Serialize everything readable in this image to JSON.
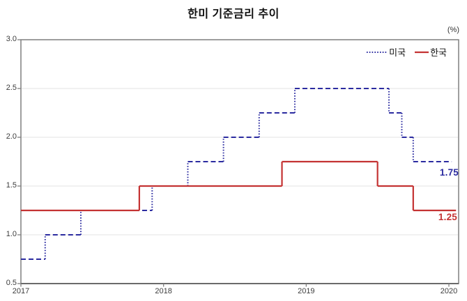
{
  "chart_data": {
    "type": "line",
    "subtype": "step",
    "title": "한미 기준금리 추이",
    "unit": "(%)",
    "x_tick_labels": [
      "2017",
      "2018",
      "2019",
      "2020"
    ],
    "y_tick_labels": [
      "3.0",
      "2.5",
      "2.0",
      "1.5",
      "1.0",
      "0.5"
    ],
    "ylim": [
      0.5,
      3.0
    ],
    "xlim": [
      2017.0,
      2020.07
    ],
    "grid": "horizontal",
    "legend_position": "top-right-inside",
    "axis_color": "#7f7f7f",
    "grid_color": "#e3e3e3",
    "series": [
      {
        "name": "미국",
        "color": "#2b2ba0",
        "line_style": "dashed",
        "end_label": "1.75",
        "steps": [
          [
            2017.0,
            0.75
          ],
          [
            2017.17,
            1.0
          ],
          [
            2017.42,
            1.25
          ],
          [
            2017.92,
            1.5
          ],
          [
            2018.17,
            1.75
          ],
          [
            2018.42,
            2.0
          ],
          [
            2018.67,
            2.25
          ],
          [
            2018.92,
            2.5
          ],
          [
            2019.58,
            2.25
          ],
          [
            2019.67,
            2.0
          ],
          [
            2019.75,
            1.75
          ],
          [
            2020.02,
            1.75
          ]
        ]
      },
      {
        "name": "한국",
        "color": "#c43333",
        "line_style": "solid",
        "end_label": "1.25",
        "steps": [
          [
            2017.0,
            1.25
          ],
          [
            2017.83,
            1.5
          ],
          [
            2018.83,
            1.75
          ],
          [
            2019.5,
            1.5
          ],
          [
            2019.75,
            1.25
          ],
          [
            2020.05,
            1.25
          ]
        ]
      }
    ]
  }
}
